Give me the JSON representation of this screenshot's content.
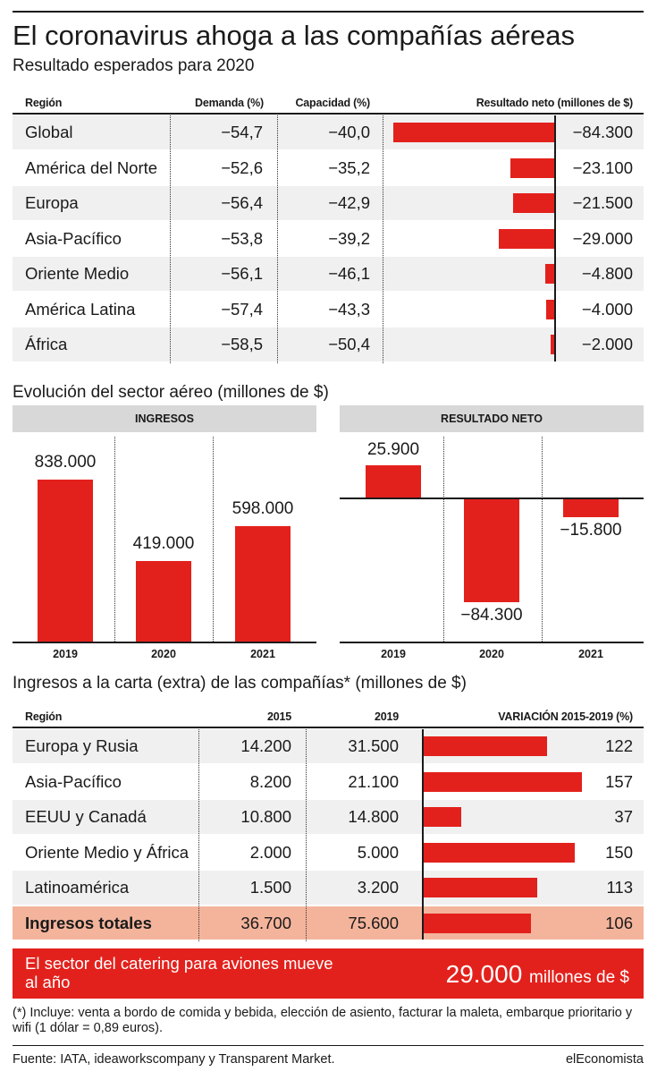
{
  "title": "El coronavirus ahoga a las compañías aéreas",
  "subtitle": "Resultado esperados para 2020",
  "table1": {
    "headers": [
      "Región",
      "Demanda (%)",
      "Capacidad (%)",
      "Resultado neto (millones de $)"
    ],
    "rows": [
      {
        "region": "Global",
        "demanda": "−54,7",
        "capacidad": "−40,0",
        "resultado": "−84.300",
        "value": -84300
      },
      {
        "region": "América del Norte",
        "demanda": "−52,6",
        "capacidad": "−35,2",
        "resultado": "−23.100",
        "value": -23100
      },
      {
        "region": "Europa",
        "demanda": "−56,4",
        "capacidad": "−42,9",
        "resultado": "−21.500",
        "value": -21500
      },
      {
        "region": "Asia-Pacífico",
        "demanda": "−53,8",
        "capacidad": "−39,2",
        "resultado": "−29.000",
        "value": -29000
      },
      {
        "region": "Oriente Medio",
        "demanda": "−56,1",
        "capacidad": "−46,1",
        "resultado": "−4.800",
        "value": -4800
      },
      {
        "region": "América Latina",
        "demanda": "−57,4",
        "capacidad": "−43,3",
        "resultado": "−4.000",
        "value": -4000
      },
      {
        "region": "África",
        "demanda": "−58,5",
        "capacidad": "−50,4",
        "resultado": "−2.000",
        "value": -2000
      }
    ]
  },
  "section2_title": "Evolución del sector aéreo (millones de $)",
  "ingresos": {
    "heading": "INGRESOS",
    "years": [
      "2019",
      "2020",
      "2021"
    ],
    "labels": [
      "838.000",
      "419.000",
      "598.000"
    ],
    "values": [
      838000,
      419000,
      598000
    ]
  },
  "resultado_neto": {
    "heading": "RESULTADO NETO",
    "years": [
      "2019",
      "2020",
      "2021"
    ],
    "labels": [
      "25.900",
      "−84.300",
      "−15.800"
    ],
    "values": [
      25900,
      -84300,
      -15800
    ]
  },
  "section3_title": "Ingresos a la carta (extra) de las compañías* (millones de $)",
  "table2": {
    "headers": [
      "Región",
      "2015",
      "2019",
      "VARIACIÓN 2015-2019 (%)"
    ],
    "rows": [
      {
        "region": "Europa y Rusia",
        "y2015": "14.200",
        "y2019": "31.500",
        "variacion": "122",
        "value": 122
      },
      {
        "region": "Asia-Pacífico",
        "y2015": "8.200",
        "y2019": "21.100",
        "variacion": "157",
        "value": 157
      },
      {
        "region": "EEUU y Canadá",
        "y2015": "10.800",
        "y2019": "14.800",
        "variacion": "37",
        "value": 37
      },
      {
        "region": "Oriente Medio y África",
        "y2015": "2.000",
        "y2019": "5.000",
        "variacion": "150",
        "value": 150
      },
      {
        "region": "Latinoamérica",
        "y2015": "1.500",
        "y2019": "3.200",
        "variacion": "113",
        "value": 113
      }
    ],
    "total": {
      "region": "Ingresos totales",
      "y2015": "36.700",
      "y2019": "75.600",
      "variacion": "106",
      "value": 106
    }
  },
  "banner": {
    "text": "El sector del catering para aviones mueve al año",
    "amount": "29.000",
    "unit": "millones de $"
  },
  "footnote": "(*) Incluye: venta a bordo de comida y bebida, elección de asiento, facturar la maleta, embarque prioritario y wifi (1 dólar = 0,89 euros).",
  "source": "Fuente: IATA, ideaworkscompany y Transparent Market.",
  "brand": "elEconomista",
  "chart_data": [
    {
      "type": "bar",
      "title": "Resultado esperados para 2020",
      "ylabel": "Resultado neto (millones de $)",
      "categories": [
        "Global",
        "América del Norte",
        "Europa",
        "Asia-Pacífico",
        "Oriente Medio",
        "América Latina",
        "África"
      ],
      "values": [
        -84300,
        -23100,
        -21500,
        -29000,
        -4800,
        -4000,
        -2000
      ]
    },
    {
      "type": "bar",
      "title": "INGRESOS",
      "categories": [
        "2019",
        "2020",
        "2021"
      ],
      "values": [
        838000,
        419000,
        598000
      ]
    },
    {
      "type": "bar",
      "title": "RESULTADO NETO",
      "categories": [
        "2019",
        "2020",
        "2021"
      ],
      "values": [
        25900,
        -84300,
        -15800
      ]
    },
    {
      "type": "bar",
      "title": "Ingresos a la carta (extra) de las compañías* (millones de $)",
      "ylabel": "VARIACIÓN 2015-2019 (%)",
      "categories": [
        "Europa y Rusia",
        "Asia-Pacífico",
        "EEUU y Canadá",
        "Oriente Medio y África",
        "Latinoamérica",
        "Ingresos totales"
      ],
      "values": [
        122,
        157,
        37,
        150,
        113,
        106
      ]
    }
  ],
  "colors": {
    "accent": "#e3211c",
    "band": "#f0f0f0",
    "highlight": "#f4b49c",
    "panel": "#d8d8d8"
  }
}
